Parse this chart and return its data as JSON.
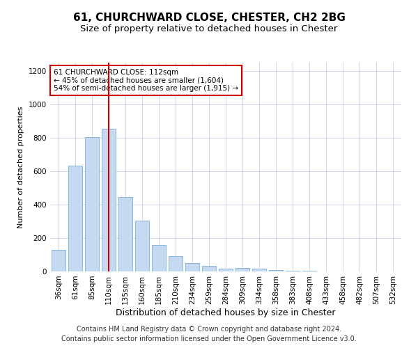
{
  "title1": "61, CHURCHWARD CLOSE, CHESTER, CH2 2BG",
  "title2": "Size of property relative to detached houses in Chester",
  "xlabel": "Distribution of detached houses by size in Chester",
  "ylabel": "Number of detached properties",
  "footer_line1": "Contains HM Land Registry data © Crown copyright and database right 2024.",
  "footer_line2": "Contains public sector information licensed under the Open Government Licence v3.0.",
  "categories": [
    "36sqm",
    "61sqm",
    "85sqm",
    "110sqm",
    "135sqm",
    "160sqm",
    "185sqm",
    "210sqm",
    "234sqm",
    "259sqm",
    "284sqm",
    "309sqm",
    "334sqm",
    "358sqm",
    "383sqm",
    "408sqm",
    "433sqm",
    "458sqm",
    "482sqm",
    "507sqm",
    "532sqm"
  ],
  "values": [
    130,
    635,
    805,
    855,
    445,
    305,
    160,
    90,
    50,
    35,
    15,
    20,
    15,
    8,
    3,
    3,
    2,
    1,
    1,
    1,
    0
  ],
  "bar_color": "#c5d9f0",
  "bar_edge_color": "#7aadd4",
  "highlight_bar_index": 3,
  "highlight_line_color": "#cc0000",
  "annotation_box_text": "61 CHURCHWARD CLOSE: 112sqm\n← 45% of detached houses are smaller (1,604)\n54% of semi-detached houses are larger (1,915) →",
  "annotation_box_color": "#cc0000",
  "ylim": [
    0,
    1250
  ],
  "yticks": [
    0,
    200,
    400,
    600,
    800,
    1000,
    1200
  ],
  "grid_color": "#d0d8e8",
  "background_color": "#ffffff",
  "title1_fontsize": 11,
  "title2_fontsize": 9.5,
  "xlabel_fontsize": 9,
  "ylabel_fontsize": 8,
  "tick_fontsize": 7.5,
  "footer_fontsize": 7
}
